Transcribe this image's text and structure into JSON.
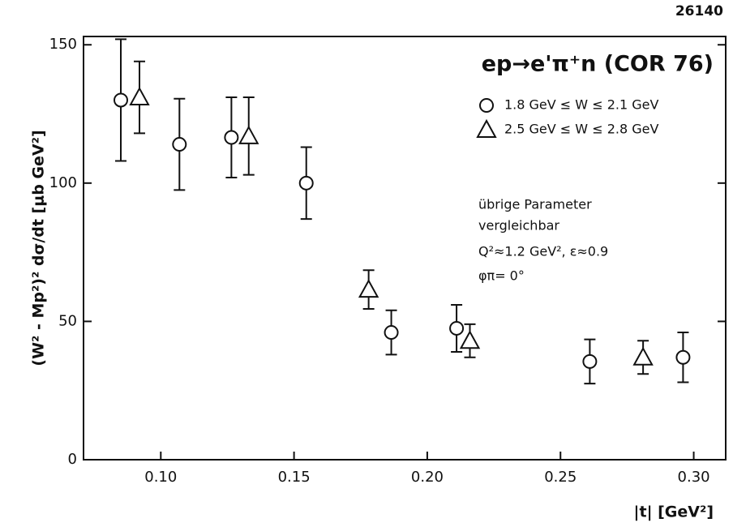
{
  "chart_data": {
    "type": "scatter",
    "figure_id": "26140",
    "title": "ep→e'π⁺n (COR 76)",
    "notes": [
      "übrige Parameter",
      "vergleichbar",
      "Q²≈1.2 GeV², ε≈0.9",
      "φπ= 0°"
    ],
    "x_label": "|t|  [GeV²]",
    "y_label": "(W² - Mp²)² dσ/dt   [μb GeV²]",
    "xlim": [
      0.071,
      0.312
    ],
    "ylim": [
      0,
      153
    ],
    "xticks": [
      {
        "value": 0.1,
        "label": "0.10"
      },
      0.15,
      {
        "value": 0.2,
        "label": "0.20"
      },
      0.25,
      {
        "value": 0.3,
        "label": "0.30"
      }
    ],
    "yticks": [
      0,
      50,
      100,
      150
    ],
    "grid": false,
    "legend": "upper right",
    "series": [
      {
        "name": "1.8 GeV ≤ W ≤ 2.1 GeV",
        "color": "#111111",
        "marker": "circle",
        "x": [
          0.085,
          0.107,
          0.1265,
          0.1546,
          0.1865,
          0.211,
          0.261,
          0.296
        ],
        "values": [
          130,
          114,
          116.5,
          100,
          46,
          47.5,
          35.5,
          37
        ],
        "errors": [
          22,
          16.5,
          14.5,
          13,
          8,
          8.5,
          8,
          9
        ]
      },
      {
        "name": "2.5 GeV ≤ W ≤ 2.8 GeV",
        "color": "#111111",
        "marker": "triangle",
        "x": [
          0.092,
          0.133,
          0.178,
          0.216,
          0.281
        ],
        "values": [
          131,
          117,
          61.5,
          43,
          37
        ],
        "errors": [
          13,
          14,
          7,
          6,
          6
        ]
      }
    ]
  }
}
